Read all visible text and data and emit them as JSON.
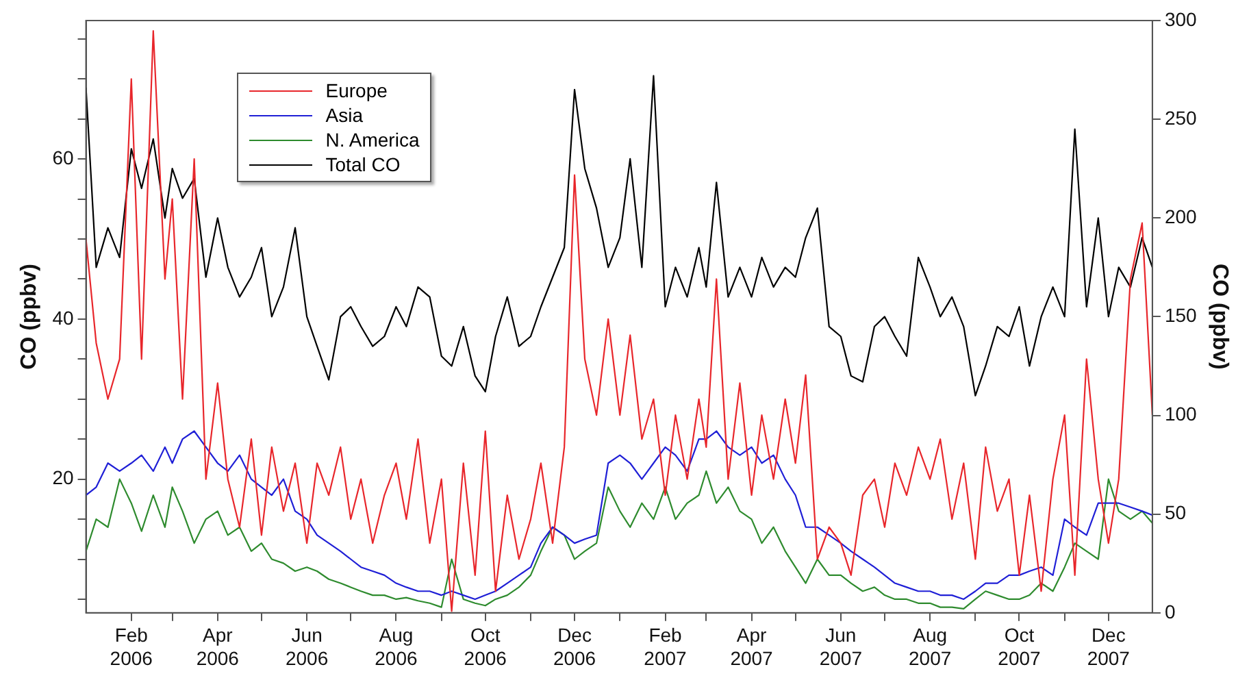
{
  "chart_data": {
    "type": "line",
    "ylabel": "CO (ppbv)",
    "y2label": "CO (ppbv)",
    "x": [
      "2006-01-01",
      "2006-01-08",
      "2006-01-16",
      "2006-01-24",
      "2006-02-01",
      "2006-02-08",
      "2006-02-16",
      "2006-02-24",
      "2006-03-01",
      "2006-03-08",
      "2006-03-16",
      "2006-03-24",
      "2006-04-01",
      "2006-04-08",
      "2006-04-16",
      "2006-04-24",
      "2006-05-01",
      "2006-05-08",
      "2006-05-16",
      "2006-05-24",
      "2006-06-01",
      "2006-06-08",
      "2006-06-16",
      "2006-06-24",
      "2006-07-01",
      "2006-07-08",
      "2006-07-16",
      "2006-07-24",
      "2006-08-01",
      "2006-08-08",
      "2006-08-16",
      "2006-08-24",
      "2006-09-01",
      "2006-09-08",
      "2006-09-16",
      "2006-09-24",
      "2006-10-01",
      "2006-10-08",
      "2006-10-16",
      "2006-10-24",
      "2006-11-01",
      "2006-11-08",
      "2006-11-16",
      "2006-11-24",
      "2006-12-01",
      "2006-12-08",
      "2006-12-16",
      "2006-12-24",
      "2007-01-01",
      "2007-01-08",
      "2007-01-16",
      "2007-01-24",
      "2007-02-01",
      "2007-02-08",
      "2007-02-16",
      "2007-02-24",
      "2007-03-01",
      "2007-03-08",
      "2007-03-16",
      "2007-03-24",
      "2007-04-01",
      "2007-04-08",
      "2007-04-16",
      "2007-04-24",
      "2007-05-01",
      "2007-05-08",
      "2007-05-16",
      "2007-05-24",
      "2007-06-01",
      "2007-06-08",
      "2007-06-16",
      "2007-06-24",
      "2007-07-01",
      "2007-07-08",
      "2007-07-16",
      "2007-07-24",
      "2007-08-01",
      "2007-08-08",
      "2007-08-16",
      "2007-08-24",
      "2007-09-01",
      "2007-09-08",
      "2007-09-16",
      "2007-09-24",
      "2007-10-01",
      "2007-10-08",
      "2007-10-16",
      "2007-10-24",
      "2007-11-01",
      "2007-11-08",
      "2007-11-16",
      "2007-11-24",
      "2007-12-01",
      "2007-12-08",
      "2007-12-16",
      "2007-12-24",
      "2007-12-31"
    ],
    "series": [
      {
        "name": "Europe",
        "color": "#e8262b",
        "values": [
          50,
          37,
          30,
          35,
          70,
          35,
          76,
          45,
          55,
          30,
          60,
          20,
          32,
          20,
          14,
          25,
          13,
          24,
          16,
          22,
          12,
          22,
          18,
          24,
          15,
          20,
          12,
          18,
          22,
          15,
          25,
          12,
          20,
          3.5,
          22,
          8,
          26,
          6,
          18,
          10,
          15,
          22,
          12,
          24,
          58,
          35,
          28,
          40,
          28,
          38,
          25,
          30,
          18,
          28,
          20,
          30,
          24,
          45,
          20,
          32,
          18,
          28,
          20,
          30,
          22,
          33,
          10,
          14,
          12,
          8,
          18,
          20,
          14,
          22,
          18,
          24,
          20,
          25,
          15,
          22,
          10,
          24,
          16,
          20,
          8,
          18,
          6,
          20,
          28,
          8,
          35,
          20,
          12,
          20,
          45,
          52,
          28
        ]
      },
      {
        "name": "Asia",
        "color": "#1f1fd6",
        "values": [
          18,
          19,
          22,
          21,
          22,
          23,
          21,
          24,
          22,
          25,
          26,
          24,
          22,
          21,
          23,
          20,
          19,
          18,
          20,
          16,
          15,
          13,
          12,
          11,
          10,
          9,
          8.5,
          8,
          7,
          6.5,
          6,
          6,
          5.5,
          6,
          5.5,
          5,
          5.5,
          6,
          7,
          8,
          9,
          12,
          14,
          13,
          12,
          12.5,
          13,
          22,
          23,
          22,
          20,
          22,
          24,
          23,
          21,
          25,
          25,
          26,
          24,
          23,
          24,
          22,
          23,
          20,
          18,
          14,
          14,
          13,
          12,
          11,
          10,
          9,
          8,
          7,
          6.5,
          6,
          6,
          5.5,
          5.5,
          5,
          6,
          7,
          7,
          8,
          8,
          8.5,
          9,
          8,
          15,
          14,
          13,
          17,
          17,
          17,
          16.5,
          16,
          15.5
        ]
      },
      {
        "name": "N. America",
        "color": "#2e8b2e",
        "values": [
          11,
          15,
          14,
          20,
          17,
          13.5,
          18,
          14,
          19,
          16,
          12,
          15,
          16,
          13,
          14,
          11,
          12,
          10,
          9.5,
          8.5,
          9,
          8.5,
          7.5,
          7,
          6.5,
          6,
          5.5,
          5.5,
          5,
          5.2,
          4.8,
          4.5,
          4,
          10,
          5,
          4.5,
          4.2,
          5,
          5.5,
          6.5,
          8,
          11,
          14,
          13,
          10,
          11,
          12,
          19,
          16,
          14,
          17,
          15,
          19,
          15,
          17,
          18,
          21,
          17,
          19,
          16,
          15,
          12,
          14,
          11,
          9,
          7,
          10,
          8,
          8,
          7,
          6,
          6.5,
          5.5,
          5,
          5,
          4.5,
          4.5,
          4,
          4,
          3.8,
          5,
          6,
          5.5,
          5,
          5,
          5.5,
          7,
          6,
          9,
          12,
          11,
          10,
          20,
          16,
          15,
          16,
          14.5
        ]
      },
      {
        "name": "Total CO",
        "color": "#000000",
        "axis": "y2",
        "values": [
          266,
          175,
          195,
          180,
          235,
          215,
          240,
          200,
          225,
          210,
          220,
          170,
          200,
          175,
          160,
          170,
          185,
          150,
          165,
          195,
          150,
          135,
          118,
          150,
          155,
          145,
          135,
          140,
          155,
          145,
          165,
          160,
          130,
          125,
          145,
          120,
          112,
          140,
          160,
          135,
          140,
          155,
          170,
          185,
          265,
          225,
          205,
          175,
          190,
          230,
          175,
          272,
          155,
          175,
          160,
          185,
          165,
          218,
          160,
          175,
          160,
          180,
          165,
          175,
          170,
          190,
          205,
          145,
          140,
          120,
          117,
          145,
          150,
          140,
          130,
          180,
          165,
          150,
          160,
          145,
          110,
          125,
          145,
          140,
          155,
          125,
          150,
          165,
          150,
          245,
          155,
          200,
          150,
          175,
          165,
          190,
          175
        ]
      }
    ],
    "xlim": [
      "2006-01-01",
      "2007-12-31"
    ],
    "xticks": [
      {
        "value": "2006-02-01",
        "label": "Feb\n2006"
      },
      {
        "value": "2006-03-01",
        "label": null
      },
      {
        "value": "2006-04-01",
        "label": "Apr\n2006"
      },
      {
        "value": "2006-05-01",
        "label": null
      },
      {
        "value": "2006-06-01",
        "label": "Jun\n2006"
      },
      {
        "value": "2006-07-01",
        "label": null
      },
      {
        "value": "2006-08-01",
        "label": "Aug\n2006"
      },
      {
        "value": "2006-09-01",
        "label": null
      },
      {
        "value": "2006-10-01",
        "label": "Oct\n2006"
      },
      {
        "value": "2006-11-01",
        "label": null
      },
      {
        "value": "2006-12-01",
        "label": "Dec\n2006"
      },
      {
        "value": "2007-01-01",
        "label": null
      },
      {
        "value": "2007-02-01",
        "label": "Feb\n2007"
      },
      {
        "value": "2007-03-01",
        "label": null
      },
      {
        "value": "2007-04-01",
        "label": "Apr\n2007"
      },
      {
        "value": "2007-05-01",
        "label": null
      },
      {
        "value": "2007-06-01",
        "label": "Jun\n2007"
      },
      {
        "value": "2007-07-01",
        "label": null
      },
      {
        "value": "2007-08-01",
        "label": "Aug\n2007"
      },
      {
        "value": "2007-09-01",
        "label": null
      },
      {
        "value": "2007-10-01",
        "label": "Oct\n2007"
      },
      {
        "value": "2007-11-01",
        "label": null
      },
      {
        "value": "2007-12-01",
        "label": "Dec\n2007"
      }
    ],
    "ylim": [
      3.3,
      77.3
    ],
    "yticks": [
      {
        "value": 5,
        "label": null
      },
      {
        "value": 10,
        "label": null
      },
      {
        "value": 15,
        "label": null
      },
      20,
      {
        "value": 25,
        "label": null
      },
      {
        "value": 30,
        "label": null
      },
      {
        "value": 35,
        "label": null
      },
      40,
      {
        "value": 45,
        "label": null
      },
      {
        "value": 50,
        "label": null
      },
      {
        "value": 55,
        "label": null
      },
      60,
      {
        "value": 65,
        "label": null
      },
      {
        "value": 70,
        "label": null
      },
      {
        "value": 75,
        "label": null
      }
    ],
    "y2lim": [
      0,
      300
    ],
    "y2ticks": [
      0,
      50,
      100,
      150,
      200,
      250,
      300
    ],
    "grid": false,
    "legend": "top left",
    "marker": "none",
    "line_style": "solid"
  }
}
